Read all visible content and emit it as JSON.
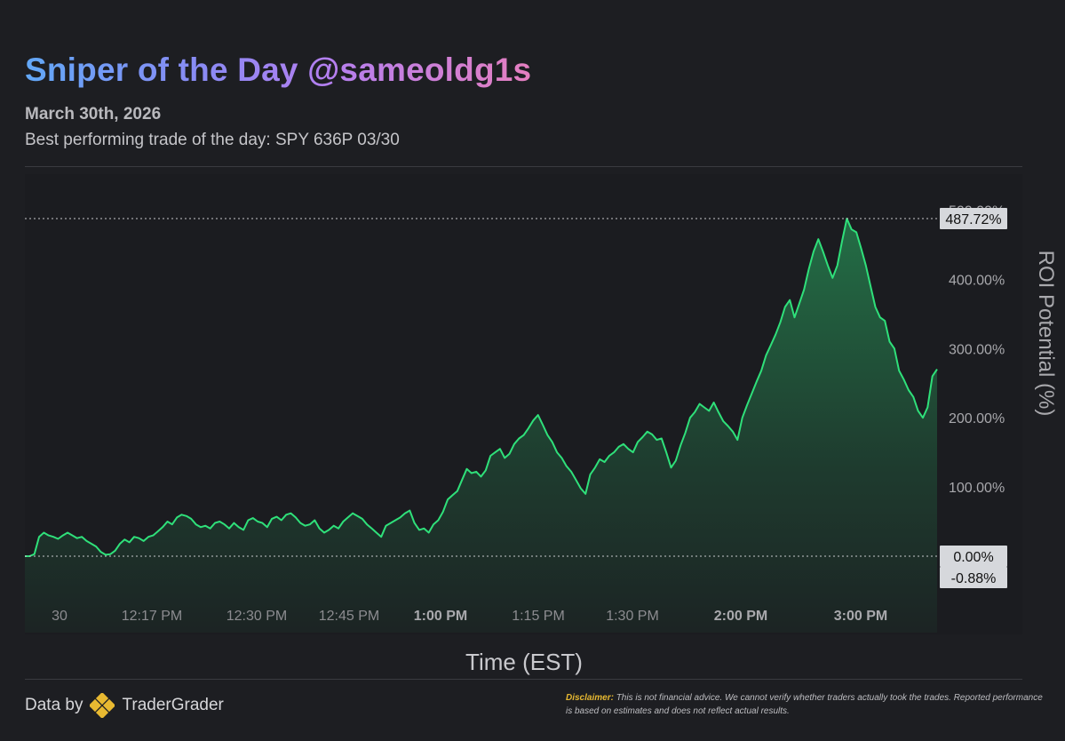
{
  "header": {
    "title": "Sniper of the Day @sameoldg1s",
    "date": "March 30th, 2026",
    "subtitle": "Best performing trade of the day: SPY 636P 03/30"
  },
  "footer": {
    "data_by": "Data by",
    "brand": "TraderGrader",
    "disclaimer_label": "Disclaimer:",
    "disclaimer_text": "This is not financial advice. We cannot verify whether traders actually took the trades. Reported performance is based on estimates and does not reflect actual results."
  },
  "colors": {
    "background": "#1d1e22",
    "plot_background": "#1b1c20",
    "line": "#2fe07a",
    "badge_bg": "#d6d8dc",
    "accent_gold": "#e8b931"
  },
  "icons": {
    "brand_logo": "tradergrader-diamond-icon"
  },
  "chart_data": {
    "type": "area",
    "title": "",
    "xlabel": "Time (EST)",
    "ylabel": "ROI Potential (%)",
    "x_ticks": [
      {
        "label": "30",
        "bold": false
      },
      {
        "label": "12:17 PM",
        "bold": false
      },
      {
        "label": "12:30 PM",
        "bold": false
      },
      {
        "label": "12:45 PM",
        "bold": false
      },
      {
        "label": "1:00 PM",
        "bold": true
      },
      {
        "label": "1:15 PM",
        "bold": false
      },
      {
        "label": "1:30 PM",
        "bold": false
      },
      {
        "label": "2:00 PM",
        "bold": true
      },
      {
        "label": "3:00 PM",
        "bold": true
      }
    ],
    "y_ticks": [
      "100.00%",
      "200.00%",
      "300.00%",
      "400.00%",
      "500.00%"
    ],
    "y_tick_values": [
      100,
      200,
      300,
      400,
      500
    ],
    "ylim": [
      -52,
      490
    ],
    "grid": false,
    "markers": [
      {
        "value": 487.72,
        "label": "487.72%",
        "line": "dotted"
      },
      {
        "value": 0,
        "label": "0.00%",
        "line": "dotted"
      },
      {
        "value": -0.88,
        "label": "-0.88%",
        "line": "none"
      }
    ],
    "series": [
      {
        "values": [
          0,
          0,
          3,
          28,
          34,
          30,
          28,
          25,
          30,
          34,
          30,
          26,
          28,
          22,
          18,
          14,
          6,
          2,
          3,
          8,
          18,
          24,
          20,
          28,
          26,
          22,
          28,
          30,
          36,
          42,
          50,
          46,
          56,
          60,
          58,
          54,
          46,
          42,
          44,
          40,
          48,
          50,
          46,
          40,
          48,
          42,
          38,
          52,
          55,
          50,
          48,
          42,
          54,
          57,
          52,
          60,
          62,
          56,
          48,
          44,
          46,
          52,
          40,
          34,
          38,
          44,
          40,
          50,
          56,
          62,
          58,
          54,
          46,
          40,
          34,
          28,
          44,
          48,
          52,
          56,
          62,
          66,
          48,
          38,
          40,
          34,
          46,
          52,
          64,
          82,
          88,
          94,
          110,
          126,
          120,
          122,
          115,
          124,
          145,
          150,
          155,
          142,
          148,
          162,
          170,
          175,
          185,
          196,
          204,
          190,
          175,
          165,
          150,
          142,
          130,
          122,
          110,
          98,
          90,
          118,
          128,
          140,
          136,
          145,
          150,
          158,
          162,
          155,
          150,
          165,
          172,
          180,
          176,
          168,
          170,
          150,
          128,
          138,
          160,
          178,
          200,
          208,
          220,
          215,
          210,
          222,
          208,
          195,
          188,
          180,
          168,
          200,
          218,
          235,
          252,
          268,
          290,
          305,
          320,
          338,
          360,
          370,
          345,
          365,
          385,
          415,
          440,
          458,
          440,
          420,
          402,
          420,
          455,
          487.72,
          472,
          468,
          445,
          420,
          390,
          360,
          345,
          340,
          310,
          300,
          268,
          255,
          240,
          230,
          210,
          200,
          215,
          260,
          270
        ]
      }
    ]
  }
}
